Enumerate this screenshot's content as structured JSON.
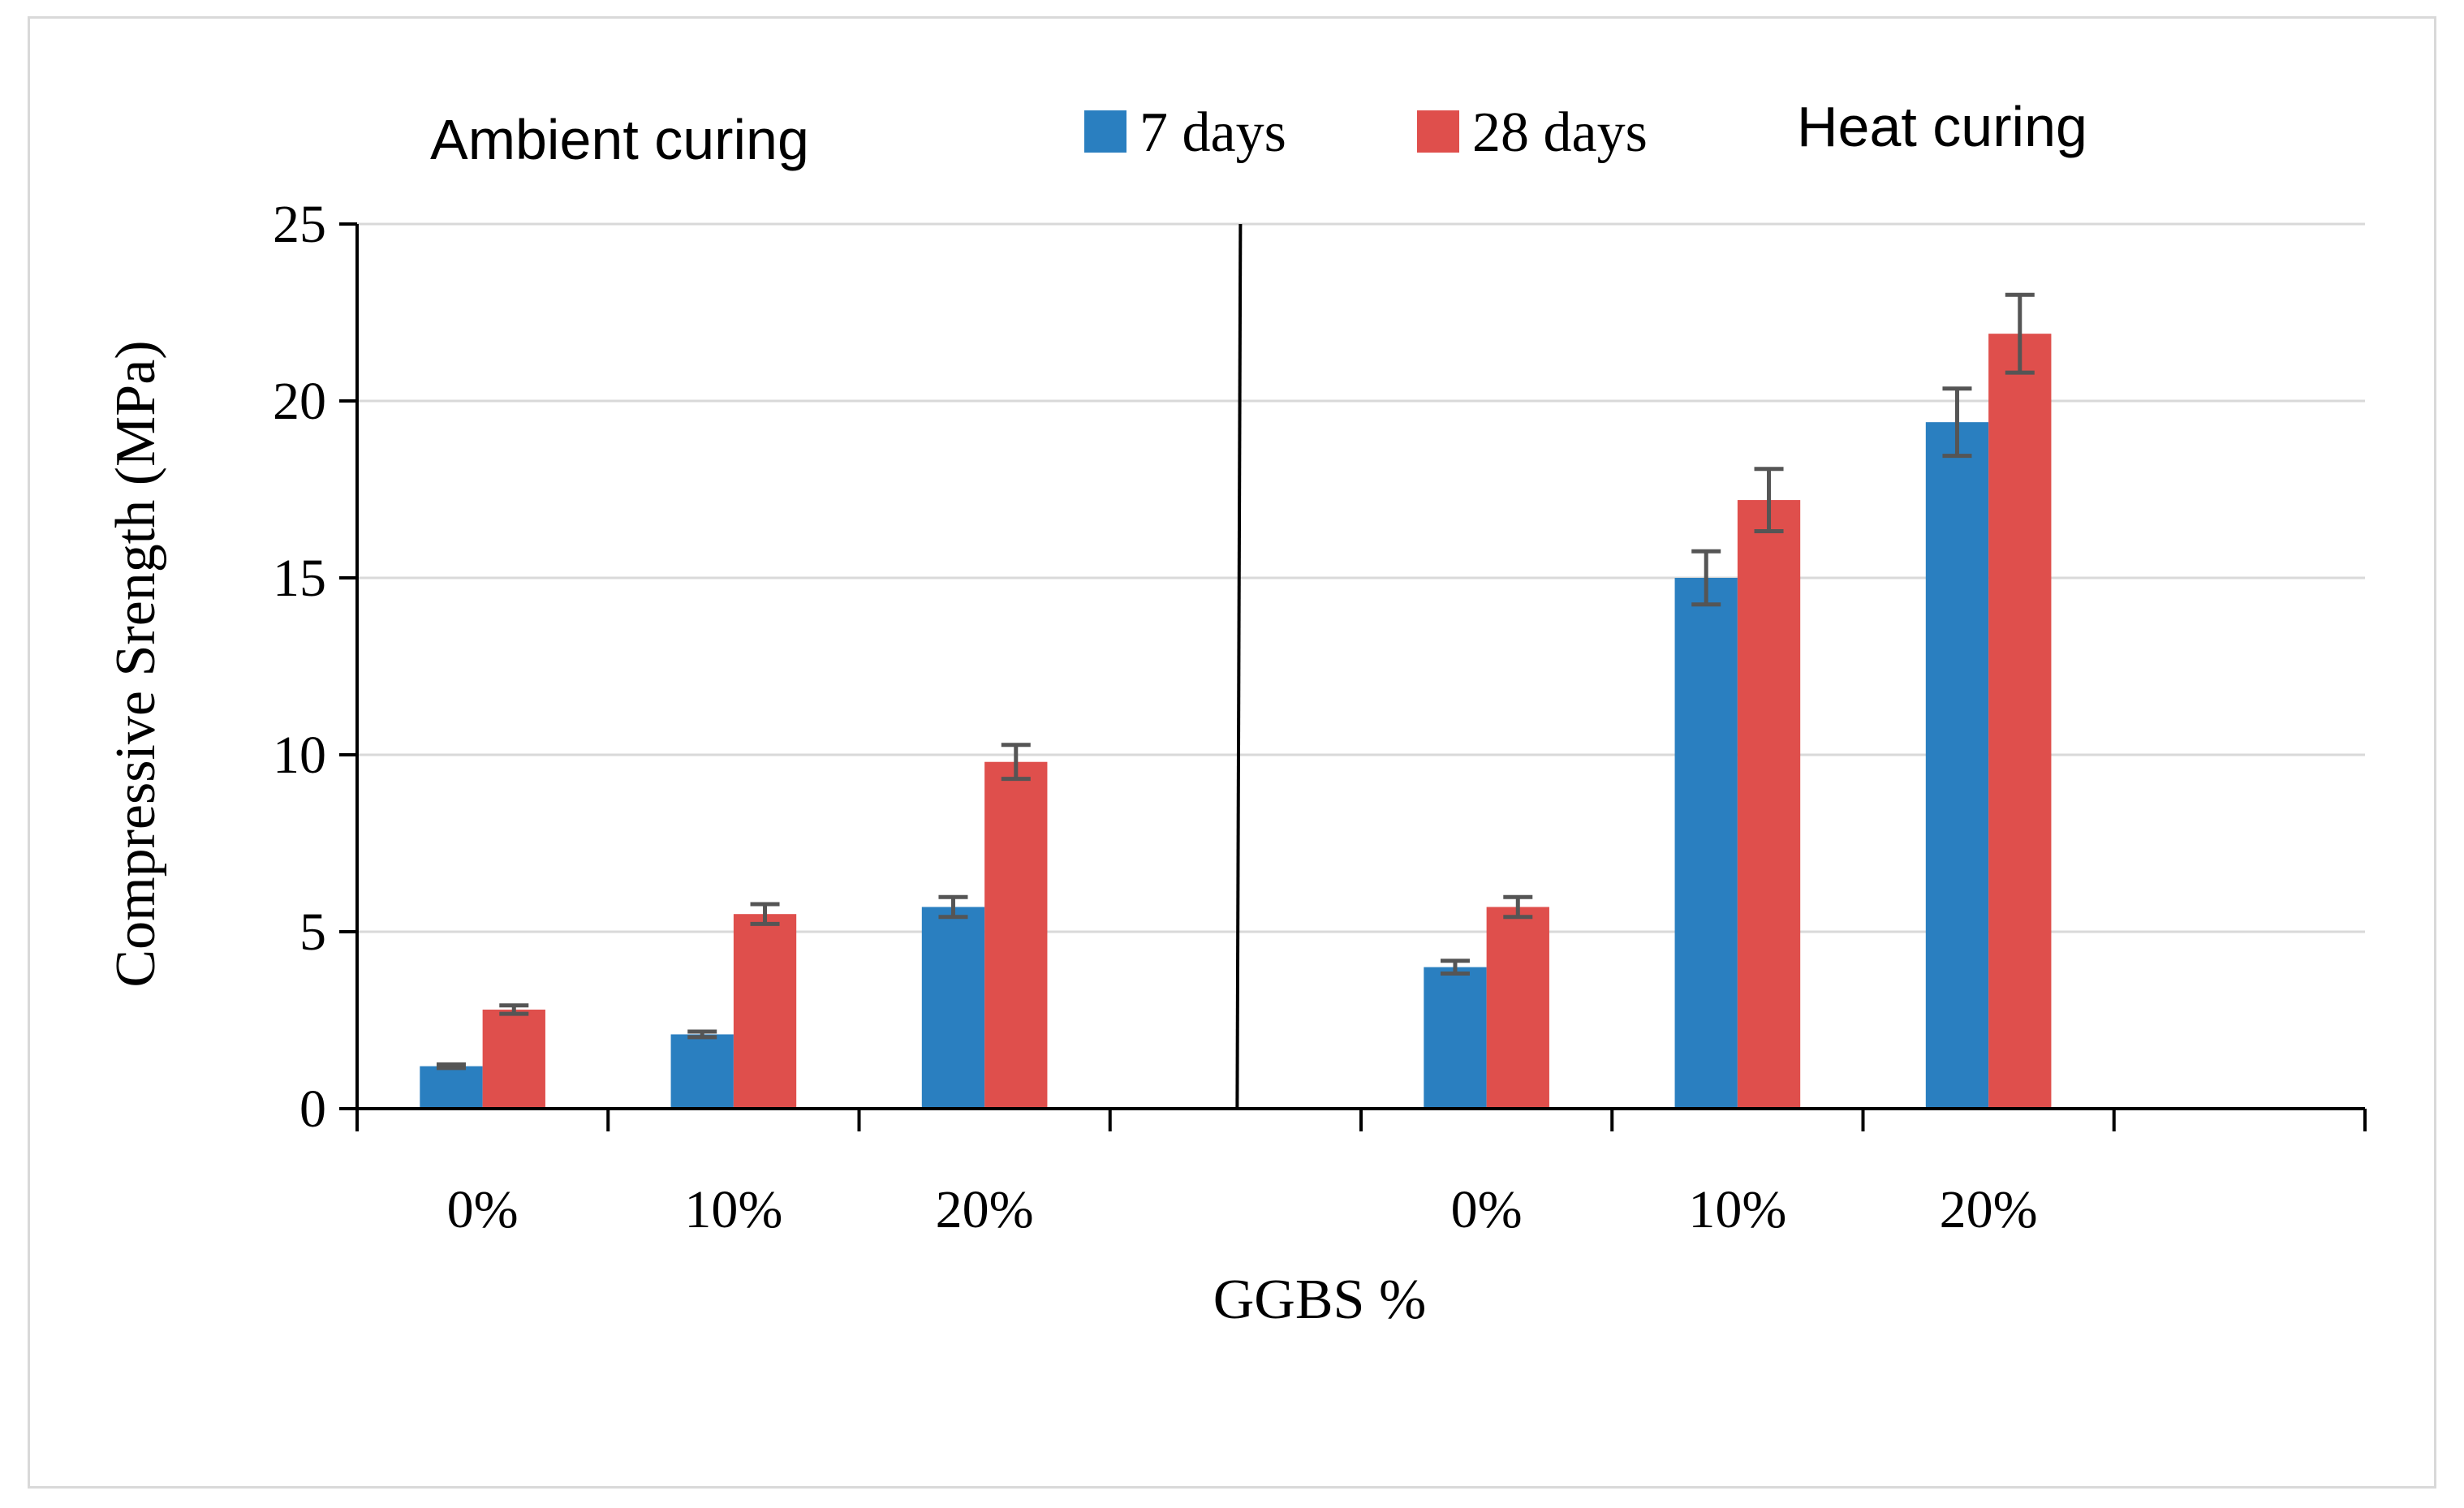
{
  "chart_data": {
    "type": "bar",
    "ylabel": "Compressive Srength (MPa)",
    "xlabel": "GGBS %",
    "ylim": [
      0,
      25
    ],
    "yticks": [
      0,
      5,
      10,
      15,
      20,
      25
    ],
    "grid": true,
    "legend_position": "top",
    "groups": [
      {
        "label": "Ambient curing",
        "categories": [
          "0%",
          "10%",
          "20%"
        ],
        "series": [
          {
            "name": "7 days",
            "values": [
              1.2,
              2.1,
              5.7
            ],
            "errors": [
              0.05,
              0.08,
              0.28
            ]
          },
          {
            "name": "28 days",
            "values": [
              2.8,
              5.5,
              9.8
            ],
            "errors": [
              0.12,
              0.28,
              0.48
            ]
          }
        ]
      },
      {
        "label": "Heat curing",
        "categories": [
          "0%",
          "10%",
          "20%"
        ],
        "series": [
          {
            "name": "7 days",
            "values": [
              4.0,
              15.0,
              19.4
            ],
            "errors": [
              0.18,
              0.75,
              0.95
            ]
          },
          {
            "name": "28 days",
            "values": [
              5.7,
              17.2,
              21.9
            ],
            "errors": [
              0.28,
              0.88,
              1.1
            ]
          }
        ]
      }
    ],
    "legend": [
      {
        "name": "7 days",
        "color": "#2a7fc0"
      },
      {
        "name": "28 days",
        "color": "#df4f4c"
      }
    ],
    "colors": {
      "bar_7days": "#2a7fc0",
      "bar_28days": "#df4f4c",
      "error_bar": "#555555",
      "grid": "#d9d9d9",
      "axis": "#000000"
    }
  }
}
